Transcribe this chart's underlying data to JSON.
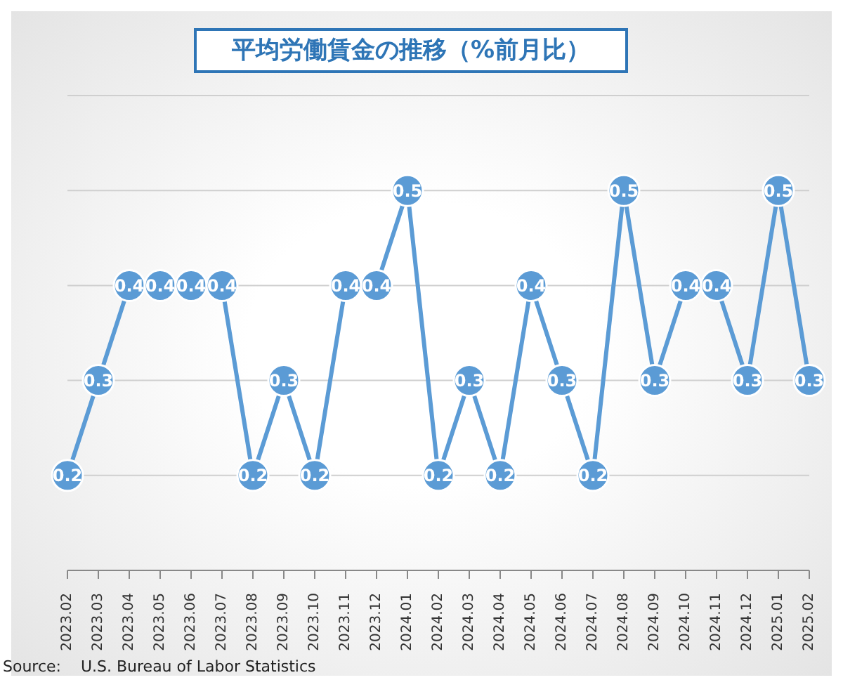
{
  "chart_data": {
    "type": "line",
    "title": "平均労働賃金の推移（%前月比）",
    "categories": [
      "2023.02",
      "2023.03",
      "2023.04",
      "2023.05",
      "2023.06",
      "2023.07",
      "2023.08",
      "2023.09",
      "2023.10",
      "2023.11",
      "2023.12",
      "2024.01",
      "2024.02",
      "2024.03",
      "2024.04",
      "2024.05",
      "2024.06",
      "2024.07",
      "2024.08",
      "2024.09",
      "2024.10",
      "2024.11",
      "2024.12",
      "2025.01",
      "2025.02"
    ],
    "series": [
      {
        "color": "#5b9bd5",
        "values": [
          0.2,
          0.3,
          0.4,
          0.4,
          0.4,
          0.4,
          0.2,
          0.3,
          0.2,
          0.4,
          0.4,
          0.5,
          0.2,
          0.3,
          0.2,
          0.4,
          0.3,
          0.2,
          0.5,
          0.3,
          0.4,
          0.4,
          0.3,
          0.5,
          0.3
        ]
      }
    ],
    "ylim": [
      0.1,
      0.6
    ],
    "yticks": [
      {
        "value": 0.2,
        "label": null
      },
      {
        "value": 0.3,
        "label": null
      },
      {
        "value": 0.4,
        "label": null
      },
      {
        "value": 0.5,
        "label": null
      }
    ],
    "grid": "y",
    "tick_labels": "x",
    "marker": "circle",
    "line_style": "solid",
    "data_labels": true,
    "legend": false,
    "annotations": [
      "Source:    U.S. Bureau of Labor Statistics"
    ]
  }
}
